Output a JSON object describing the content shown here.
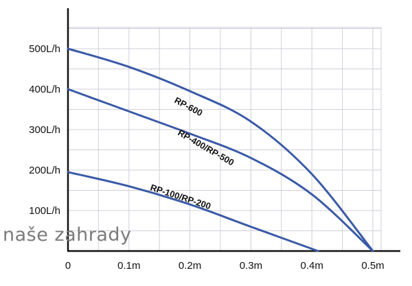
{
  "chart_data": {
    "type": "line",
    "x_ticks": [
      "0",
      "0.1m",
      "0.2m",
      "0.3m",
      "0.4m",
      "0.5m"
    ],
    "y_ticks": [
      "100L/h",
      "200L/h",
      "300L/h",
      "400L/h",
      "500L/h"
    ],
    "xlim": [
      0,
      0.5
    ],
    "ylim": [
      0,
      600
    ],
    "grid": true,
    "series": [
      {
        "name": "RP-600",
        "color": "#3a5aa6",
        "x": [
          0,
          0.1,
          0.2,
          0.3,
          0.4,
          0.5
        ],
        "y": [
          500,
          455,
          395,
          320,
          190,
          0
        ]
      },
      {
        "name": "RP-400/RP-500",
        "color": "#3a5aa6",
        "x": [
          0,
          0.1,
          0.2,
          0.3,
          0.4,
          0.5
        ],
        "y": [
          400,
          345,
          290,
          230,
          140,
          0
        ]
      },
      {
        "name": "RP-100/RP-200",
        "color": "#3a5aa6",
        "x": [
          0,
          0.1,
          0.2,
          0.3,
          0.41
        ],
        "y": [
          195,
          160,
          115,
          60,
          0
        ]
      }
    ]
  },
  "watermark": "naše zahrady"
}
